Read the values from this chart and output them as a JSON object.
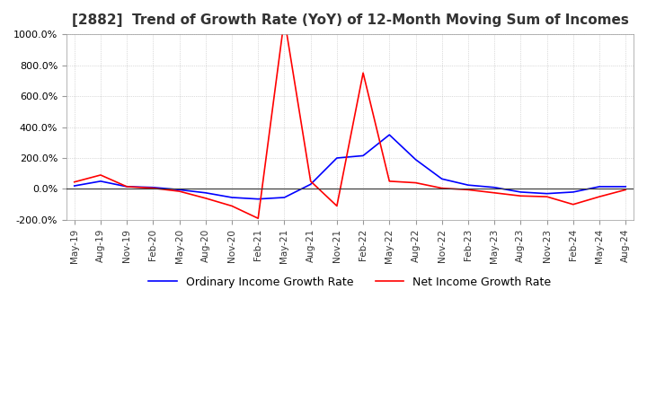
{
  "title": "[2882]  Trend of Growth Rate (YoY) of 12-Month Moving Sum of Incomes",
  "title_fontsize": 11,
  "ylim": [
    -200,
    1000
  ],
  "yticks": [
    -200,
    0,
    200,
    400,
    600,
    800,
    1000
  ],
  "background_color": "#ffffff",
  "grid_color": "#aaaaaa",
  "legend_labels": [
    "Ordinary Income Growth Rate",
    "Net Income Growth Rate"
  ],
  "legend_colors": [
    "#0000ff",
    "#ff0000"
  ],
  "x_labels": [
    "May-19",
    "Aug-19",
    "Nov-19",
    "Feb-20",
    "May-20",
    "Aug-20",
    "Nov-20",
    "Feb-21",
    "May-21",
    "Aug-21",
    "Nov-21",
    "Feb-22",
    "May-22",
    "Aug-22",
    "Nov-22",
    "Feb-23",
    "May-23",
    "Aug-23",
    "Nov-23",
    "Feb-24",
    "May-24",
    "Aug-24"
  ],
  "ordinary_income": [
    20,
    50,
    15,
    10,
    -5,
    -25,
    -55,
    -65,
    -55,
    30,
    200,
    215,
    350,
    190,
    65,
    25,
    10,
    -20,
    -30,
    -20,
    15,
    15
  ],
  "net_income": [
    45,
    90,
    15,
    5,
    -15,
    -60,
    -110,
    -190,
    1100,
    50,
    -110,
    750,
    50,
    40,
    5,
    -5,
    -25,
    -45,
    -50,
    -100,
    -50,
    -5
  ]
}
